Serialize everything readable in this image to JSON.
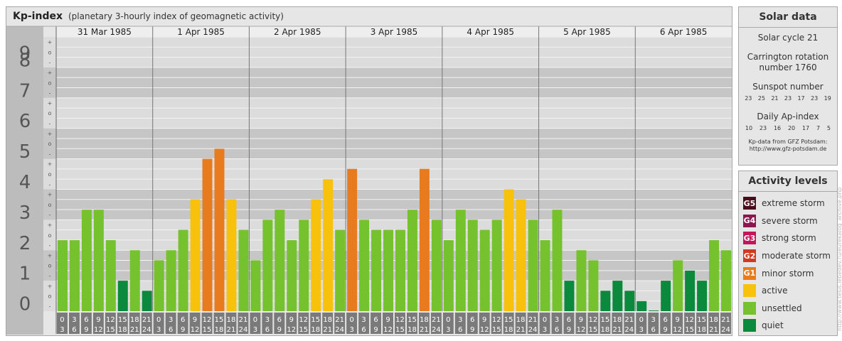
{
  "title": {
    "main": "Kp-index",
    "sub": "(planetary 3-hourly index of geomagnetic activity)"
  },
  "chart_data": {
    "type": "bar",
    "y_axis_labels": [
      "0",
      "1",
      "2",
      "3",
      "4",
      "5",
      "6",
      "7",
      "8",
      "9"
    ],
    "minor_labels": [
      "-",
      "o",
      "+"
    ],
    "ylim": [
      0,
      9
    ],
    "days": [
      "31 Mar 1985",
      "1 Apr 1985",
      "2 Apr 1985",
      "3 Apr 1985",
      "4 Apr 1985",
      "5 Apr 1985",
      "6 Apr 1985"
    ],
    "interval_labels": [
      [
        "0",
        "3"
      ],
      [
        "3",
        "6"
      ],
      [
        "6",
        "9"
      ],
      [
        "9",
        "12"
      ],
      [
        "12",
        "15"
      ],
      [
        "15",
        "18"
      ],
      [
        "18",
        "21"
      ],
      [
        "21",
        "24"
      ]
    ],
    "values": [
      [
        2.33,
        2.33,
        3.33,
        3.33,
        2.33,
        1.0,
        2.0,
        0.67
      ],
      [
        1.67,
        2.0,
        2.67,
        3.67,
        5.0,
        5.33,
        3.67,
        2.67
      ],
      [
        1.67,
        3.0,
        3.33,
        2.33,
        3.0,
        3.67,
        4.33,
        2.67
      ],
      [
        4.67,
        3.0,
        2.67,
        2.67,
        2.67,
        3.33,
        4.67,
        3.0
      ],
      [
        2.33,
        3.33,
        3.0,
        2.67,
        3.0,
        4.0,
        3.67,
        3.0
      ],
      [
        2.33,
        3.33,
        1.0,
        2.0,
        1.67,
        0.67,
        1.0,
        0.67
      ],
      [
        0.33,
        0.0,
        1.0,
        1.67,
        1.33,
        1.0,
        2.33,
        2.0
      ]
    ]
  },
  "solar_data": {
    "title": "Solar data",
    "cycle": "Solar cycle 21",
    "carrington_1": "Carrington rotation",
    "carrington_2": "number 1760",
    "sunspot_title": "Sunspot number",
    "sunspots": [
      "23",
      "25",
      "21",
      "23",
      "17",
      "23",
      "19"
    ],
    "ap_title": "Daily Ap-index",
    "ap": [
      "10",
      "23",
      "16",
      "20",
      "17",
      "7",
      "5"
    ],
    "credit_1": "Kp-data from GFZ Potsdam:",
    "credit_2": "http://www.gfz-potsdam.de"
  },
  "activity_levels": {
    "title": "Activity levels",
    "items": [
      {
        "code": "G5",
        "label": "extreme storm",
        "color": "#4a0d1c"
      },
      {
        "code": "G4",
        "label": "severe storm",
        "color": "#8c1650"
      },
      {
        "code": "G3",
        "label": "strong storm",
        "color": "#c2185b"
      },
      {
        "code": "G2",
        "label": "moderate storm",
        "color": "#d03a1e"
      },
      {
        "code": "G1",
        "label": "minor storm",
        "color": "#e87b1e"
      },
      {
        "code": "",
        "label": "active",
        "color": "#f8c20c"
      },
      {
        "code": "",
        "label": "unsettled",
        "color": "#76c12e"
      },
      {
        "code": "",
        "label": "quiet",
        "color": "#0b8a3d"
      }
    ]
  },
  "colors": {
    "quiet": "#0b8a3d",
    "unsettled": "#76c12e",
    "active": "#f8c20c",
    "minor_storm": "#e87b1e",
    "moderate_storm": "#d03a1e"
  },
  "watermark": "http://www.tesis.lebedev.ru/eurekalog_archive.php"
}
